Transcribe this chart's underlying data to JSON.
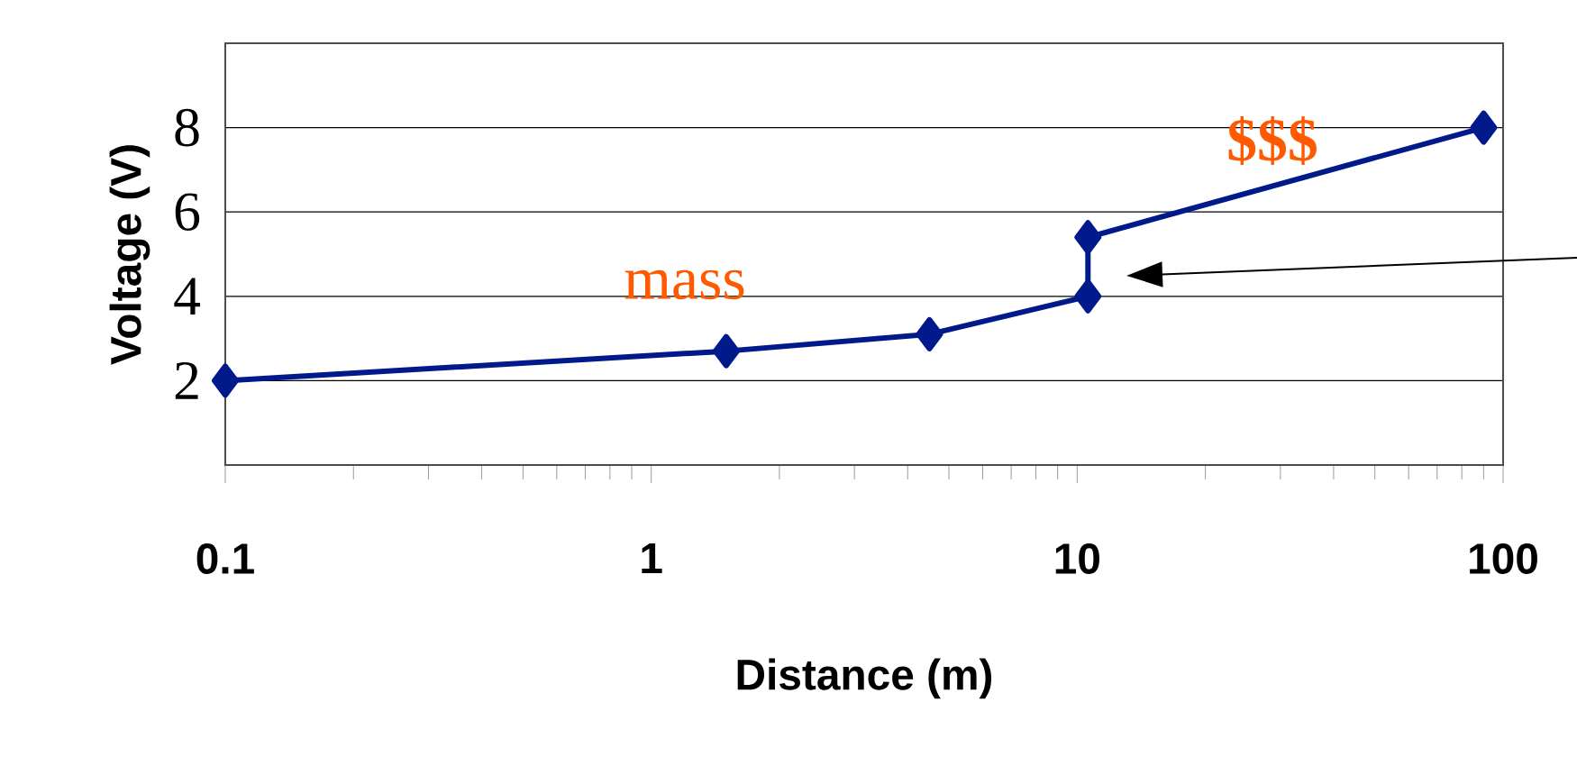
{
  "chart_data": {
    "type": "line",
    "xlabel": "Distance (m)",
    "ylabel": "Voltage (V)",
    "x": [
      0.1,
      1.5,
      4.5,
      10.6,
      10.6,
      90
    ],
    "series": [
      {
        "color": "#001a8c",
        "values": [
          2.0,
          2.7,
          3.1,
          4.0,
          5.4,
          8.0
        ]
      }
    ],
    "xlim": [
      0.1,
      100
    ],
    "xticks": [
      0.1,
      1,
      10,
      100
    ],
    "ylim": [
      0,
      10
    ],
    "yticks": [
      2,
      4,
      6,
      8
    ],
    "log": "x",
    "grid": "y",
    "marker": "diamond",
    "line_style": "solid",
    "annotations": [
      "mass",
      "$$$"
    ]
  }
}
